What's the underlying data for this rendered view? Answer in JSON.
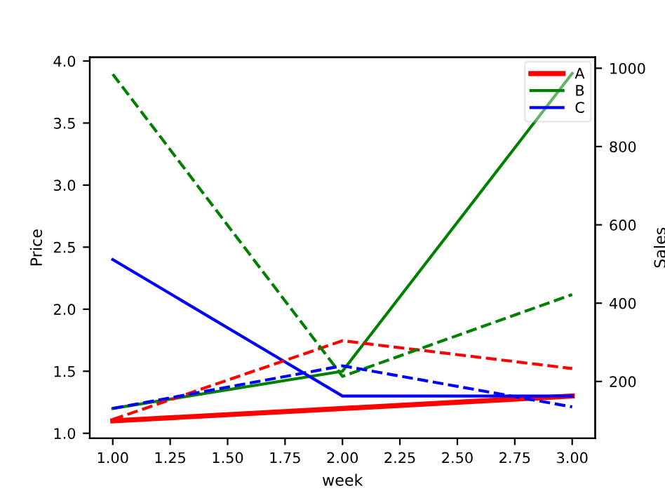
{
  "chart_data": {
    "type": "line",
    "xlabel": "week",
    "ylabel": "Price",
    "y2label": "Sales",
    "x": [
      1,
      2,
      3
    ],
    "xlim": [
      0.9,
      3.1
    ],
    "xticks": [
      {
        "value": 1,
        "label": "1.00"
      },
      {
        "value": 1.25,
        "label": "1.25"
      },
      {
        "value": 1.5,
        "label": "1.50"
      },
      {
        "value": 1.75,
        "label": "1.75"
      },
      {
        "value": 2,
        "label": "2.00"
      },
      {
        "value": 2.25,
        "label": "2.25"
      },
      {
        "value": 2.5,
        "label": "2.50"
      },
      {
        "value": 2.75,
        "label": "2.75"
      },
      {
        "value": 3,
        "label": "3.00"
      }
    ],
    "ylim": [
      0.96,
      4.03
    ],
    "yticks": [
      {
        "value": 1,
        "label": "1.0"
      },
      {
        "value": 1.5,
        "label": "1.5"
      },
      {
        "value": 2,
        "label": "2.0"
      },
      {
        "value": 2.5,
        "label": "2.5"
      },
      {
        "value": 3,
        "label": "3.0"
      },
      {
        "value": 3.5,
        "label": "3.5"
      },
      {
        "value": 4,
        "label": "4.0"
      }
    ],
    "y2lim": [
      55,
      1028
    ],
    "y2ticks": [
      200,
      400,
      600,
      800,
      1000
    ],
    "legend": "top right",
    "grid": false,
    "marker": "none",
    "series": [
      {
        "name": "A",
        "color": "#ff0000",
        "values": [
          1.1,
          1.2,
          1.3
        ],
        "line_style": "solid"
      },
      {
        "name": "B",
        "color": "#008000",
        "values": [
          1.2,
          1.5,
          3.9
        ],
        "line_style": "solid"
      },
      {
        "name": "C",
        "color": "#0000ff",
        "values": [
          2.4,
          1.3,
          1.3
        ],
        "line_style": "solid"
      },
      {
        "color": "#ff0000",
        "values": [
          103,
          304,
          233
        ],
        "axis": "y2",
        "line_style": "dashed"
      },
      {
        "color": "#008000",
        "values": [
          985,
          213,
          422
        ],
        "axis": "y2",
        "line_style": "dashed"
      },
      {
        "color": "#0000ff",
        "values": [
          131,
          240,
          135
        ],
        "axis": "y2",
        "line_style": "dashed"
      }
    ]
  }
}
